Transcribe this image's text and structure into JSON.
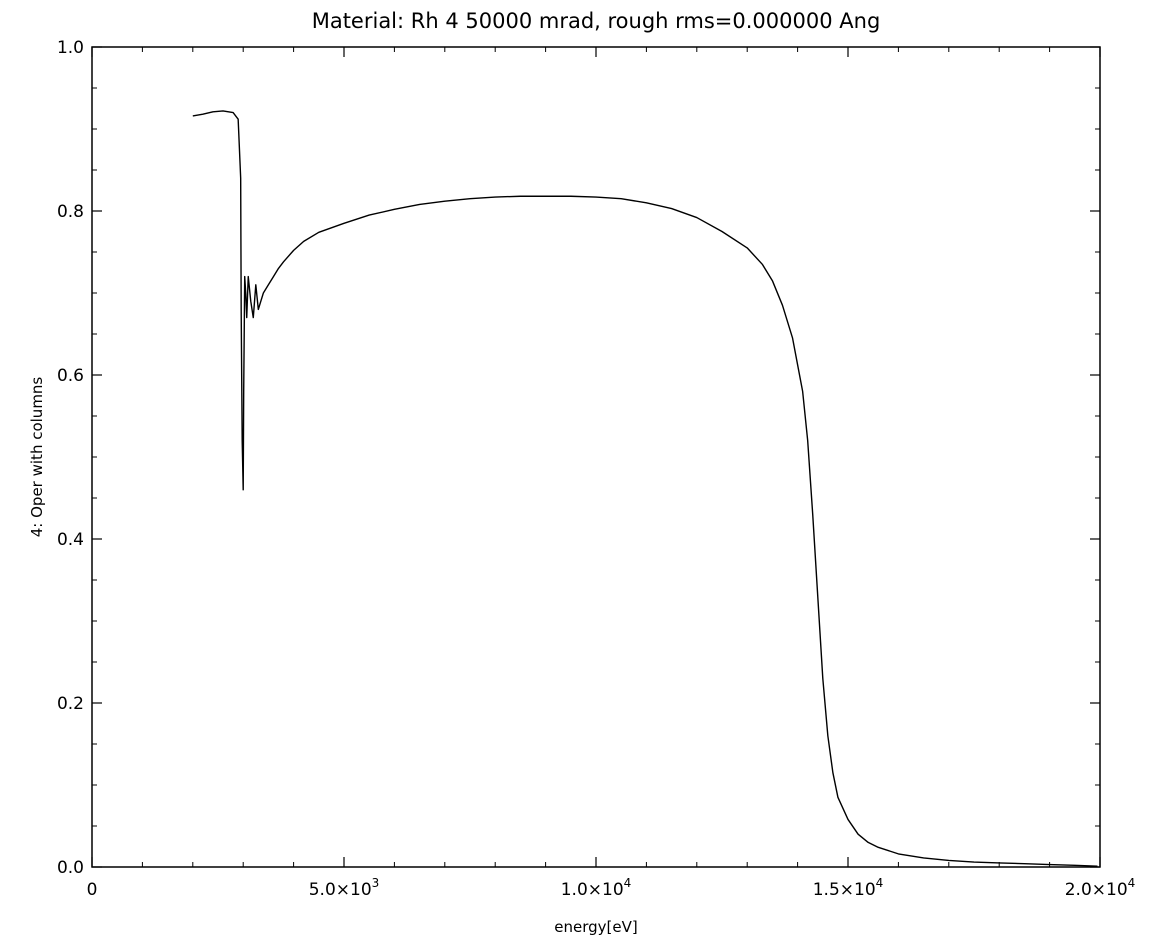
{
  "chart_data": {
    "type": "line",
    "title": "Material: Rh 4 50000 mrad, rough rms=0.000000 Ang",
    "xlabel": "energy[eV]",
    "ylabel": "4: Oper with columns",
    "xlim": [
      0,
      20000
    ],
    "ylim": [
      0,
      1.0
    ],
    "grid": false,
    "x_ticks": [
      {
        "value": 0,
        "mant": "0",
        "exp": ""
      },
      {
        "value": 5000,
        "mant": "5.0×10",
        "exp": "3"
      },
      {
        "value": 10000,
        "mant": "1.0×10",
        "exp": "4"
      },
      {
        "value": 15000,
        "mant": "1.5×10",
        "exp": "4"
      },
      {
        "value": 20000,
        "mant": "2.0×10",
        "exp": "4"
      }
    ],
    "y_ticks": [
      {
        "value": 0.0,
        "label": "0.0"
      },
      {
        "value": 0.2,
        "label": "0.2"
      },
      {
        "value": 0.4,
        "label": "0.4"
      },
      {
        "value": 0.6,
        "label": "0.6"
      },
      {
        "value": 0.8,
        "label": "0.8"
      },
      {
        "value": 1.0,
        "label": "1.0"
      }
    ],
    "series": [
      {
        "color": "#000000",
        "x": [
          2000,
          2200,
          2400,
          2600,
          2800,
          2900,
          2950,
          2960,
          2980,
          3000,
          3010,
          3030,
          3050,
          3070,
          3100,
          3150,
          3200,
          3250,
          3300,
          3350,
          3400,
          3450,
          3500,
          3600,
          3700,
          3800,
          4000,
          4200,
          4500,
          5000,
          5500,
          6000,
          6500,
          7000,
          7500,
          8000,
          8500,
          9000,
          9500,
          10000,
          10500,
          11000,
          11500,
          12000,
          12500,
          13000,
          13300,
          13500,
          13700,
          13900,
          14100,
          14200,
          14300,
          14400,
          14500,
          14600,
          14700,
          14800,
          15000,
          15200,
          15400,
          15600,
          16000,
          16500,
          17000,
          17500,
          18000,
          18500,
          19000,
          19500,
          19950
        ],
        "y": [
          0.916,
          0.918,
          0.921,
          0.922,
          0.92,
          0.912,
          0.84,
          0.68,
          0.52,
          0.46,
          0.58,
          0.72,
          0.7,
          0.67,
          0.72,
          0.69,
          0.67,
          0.71,
          0.68,
          0.69,
          0.7,
          0.705,
          0.71,
          0.72,
          0.73,
          0.738,
          0.752,
          0.763,
          0.774,
          0.785,
          0.795,
          0.802,
          0.808,
          0.812,
          0.815,
          0.817,
          0.818,
          0.818,
          0.818,
          0.817,
          0.815,
          0.81,
          0.803,
          0.792,
          0.775,
          0.755,
          0.735,
          0.715,
          0.685,
          0.645,
          0.58,
          0.52,
          0.43,
          0.33,
          0.23,
          0.16,
          0.115,
          0.085,
          0.058,
          0.04,
          0.03,
          0.024,
          0.016,
          0.011,
          0.008,
          0.006,
          0.005,
          0.004,
          0.003,
          0.002,
          0.001
        ]
      }
    ]
  }
}
